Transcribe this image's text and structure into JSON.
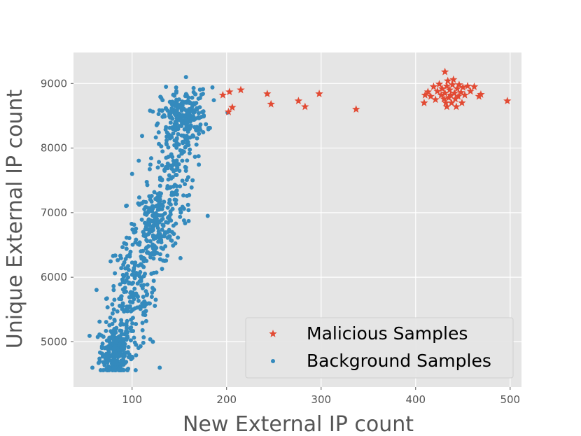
{
  "chart_data": {
    "type": "scatter",
    "xlabel": "New External IP count",
    "ylabel": "Unique External IP count",
    "xlim": [
      38,
      512
    ],
    "ylim": [
      4300,
      9480
    ],
    "xticks": [
      100,
      200,
      300,
      400,
      500
    ],
    "yticks": [
      5000,
      6000,
      7000,
      8000,
      9000
    ],
    "grid": true,
    "legend_position": "lower-right",
    "series": [
      {
        "name": "Malicious Samples",
        "marker": "star",
        "color": "#E24A33",
        "points": [
          [
            196,
            8820
          ],
          [
            203,
            8870
          ],
          [
            202,
            8560
          ],
          [
            206,
            8630
          ],
          [
            215,
            8900
          ],
          [
            243,
            8840
          ],
          [
            247,
            8680
          ],
          [
            276,
            8730
          ],
          [
            283,
            8640
          ],
          [
            298,
            8840
          ],
          [
            337,
            8600
          ],
          [
            409,
            8700
          ],
          [
            410,
            8820
          ],
          [
            413,
            8870
          ],
          [
            416,
            8800
          ],
          [
            419,
            8950
          ],
          [
            421,
            8750
          ],
          [
            423,
            8880
          ],
          [
            425,
            8990
          ],
          [
            427,
            8820
          ],
          [
            428,
            8920
          ],
          [
            430,
            8760
          ],
          [
            431,
            8850
          ],
          [
            431,
            9180
          ],
          [
            432,
            8700
          ],
          [
            433,
            8640
          ],
          [
            433,
            8960
          ],
          [
            434,
            9040
          ],
          [
            435,
            8780
          ],
          [
            436,
            8900
          ],
          [
            437,
            8820
          ],
          [
            438,
            8700
          ],
          [
            439,
            8980
          ],
          [
            440,
            9060
          ],
          [
            441,
            8850
          ],
          [
            442,
            8760
          ],
          [
            443,
            8640
          ],
          [
            444,
            8920
          ],
          [
            445,
            8800
          ],
          [
            446,
            8980
          ],
          [
            448,
            8860
          ],
          [
            449,
            8700
          ],
          [
            450,
            8940
          ],
          [
            452,
            8820
          ],
          [
            455,
            8960
          ],
          [
            458,
            8880
          ],
          [
            462,
            8950
          ],
          [
            467,
            8800
          ],
          [
            469,
            8830
          ],
          [
            497,
            8730
          ]
        ]
      },
      {
        "name": "Background Samples",
        "marker": "circle",
        "color": "#348ABD",
        "clusters": [
          {
            "cx": 82,
            "cy": 4850,
            "sx": 8,
            "sy": 210,
            "n": 240
          },
          {
            "cx": 100,
            "cy": 5700,
            "sx": 13,
            "sy": 430,
            "n": 200
          },
          {
            "cx": 125,
            "cy": 6800,
            "sx": 11,
            "sy": 300,
            "n": 220
          },
          {
            "cx": 142,
            "cy": 7700,
            "sx": 12,
            "sy": 450,
            "n": 150
          },
          {
            "cx": 155,
            "cy": 8500,
            "sx": 12,
            "sy": 200,
            "n": 210
          }
        ],
        "extra_points": [
          [
            157,
            9100
          ],
          [
            100,
            7600
          ],
          [
            125,
            5650
          ],
          [
            122,
            5000
          ],
          [
            201,
            8550
          ],
          [
            185,
            8940
          ],
          [
            175,
            8840
          ],
          [
            58,
            4600
          ],
          [
            90,
            4570
          ],
          [
            180,
            6950
          ]
        ]
      }
    ]
  }
}
